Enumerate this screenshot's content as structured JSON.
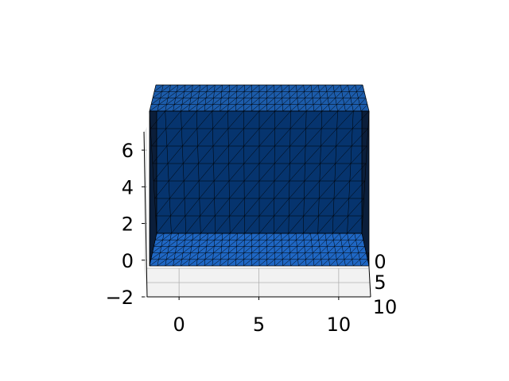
{
  "chart_data": {
    "type": "surface3d",
    "title": "",
    "xlabel": "",
    "ylabel": "",
    "zlabel": "",
    "x_ticks": [
      "0",
      "5",
      "10"
    ],
    "y_ticks": [
      "0",
      "5",
      "10"
    ],
    "z_ticks": [
      "−2",
      "0",
      "2",
      "4",
      "6"
    ],
    "x_range": [
      -2,
      12
    ],
    "y_range": [
      0,
      10
    ],
    "z_range": [
      -2,
      7
    ],
    "mesh": {
      "shape": "open box (floor + back wall + side walls)",
      "x_extent": [
        -2,
        12
      ],
      "y_extent": [
        0,
        10
      ],
      "z_extent": [
        0,
        7
      ],
      "triangulated": true
    },
    "grid": true,
    "colors": {
      "top_face": "#1c5cab",
      "back_wall": "#06346e",
      "floor": "#1f67c4",
      "side_wall": "#0b1e3a",
      "edge": "#000000",
      "pane": "#f2f2f2",
      "grid": "#b0b0b0"
    }
  }
}
